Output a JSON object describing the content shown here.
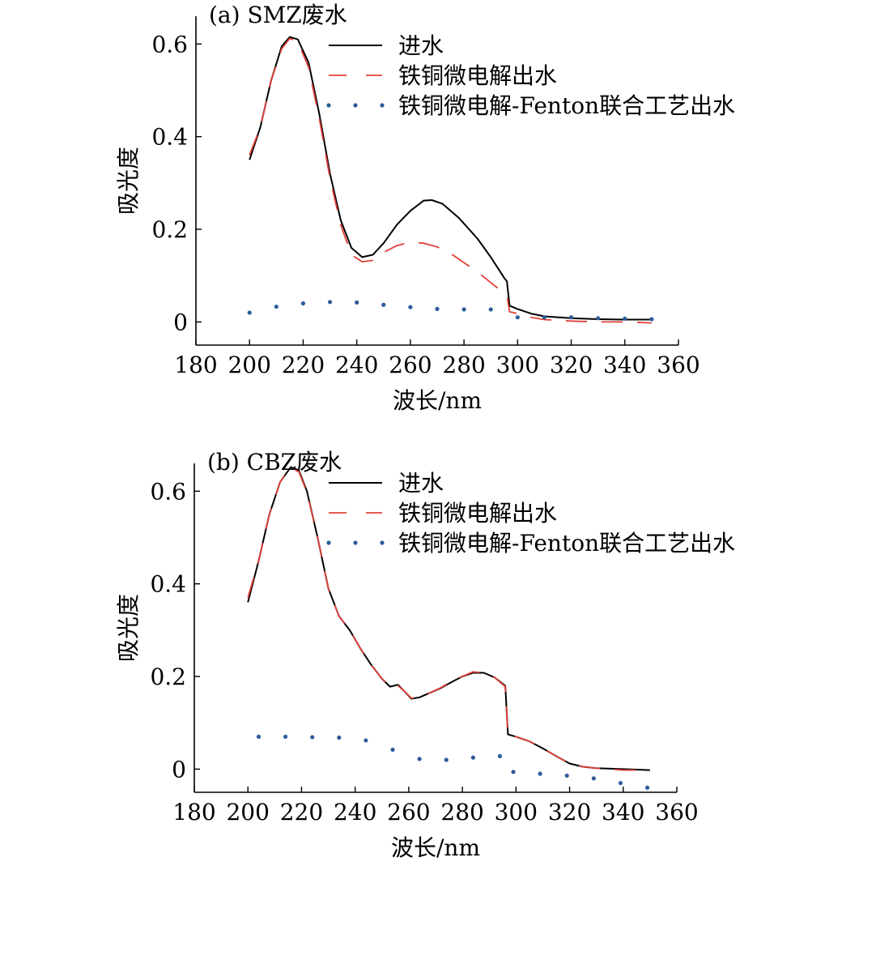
{
  "colors": {
    "inflow": "#000000",
    "micro_electrolysis": "#e2403a",
    "combined_process": "#2e5c9a"
  },
  "chart_data": [
    {
      "type": "line",
      "panel_label": "(a)  SMZ废水",
      "ylabel": "吸光度",
      "xlabel": "波长/nm",
      "xlim": [
        180,
        360
      ],
      "ylim": [
        -0.05,
        0.66
      ],
      "x_ticks": [
        180,
        200,
        220,
        240,
        260,
        280,
        300,
        320,
        340,
        360
      ],
      "y_ticks": [
        0,
        0.2,
        0.4,
        0.6
      ],
      "y_tick_labels": [
        "0",
        "0.2",
        "0.4",
        "0.6"
      ],
      "legend_position": "top-right",
      "series": [
        {
          "name": "进水",
          "style": "solid",
          "color": "#000000",
          "points": [
            [
              200,
              0.35
            ],
            [
              204,
              0.42
            ],
            [
              208,
              0.52
            ],
            [
              212,
              0.595
            ],
            [
              215,
              0.615
            ],
            [
              218,
              0.61
            ],
            [
              222,
              0.56
            ],
            [
              226,
              0.45
            ],
            [
              230,
              0.32
            ],
            [
              234,
              0.22
            ],
            [
              238,
              0.16
            ],
            [
              242,
              0.14
            ],
            [
              246,
              0.145
            ],
            [
              250,
              0.17
            ],
            [
              255,
              0.21
            ],
            [
              260,
              0.24
            ],
            [
              265,
              0.262
            ],
            [
              268,
              0.263
            ],
            [
              272,
              0.255
            ],
            [
              278,
              0.225
            ],
            [
              285,
              0.18
            ],
            [
              290,
              0.14
            ],
            [
              295,
              0.095
            ],
            [
              296,
              0.088
            ],
            [
              297,
              0.035
            ],
            [
              300,
              0.028
            ],
            [
              305,
              0.018
            ],
            [
              310,
              0.012
            ],
            [
              320,
              0.008
            ],
            [
              330,
              0.006
            ],
            [
              340,
              0.005
            ],
            [
              350,
              0.005
            ]
          ]
        },
        {
          "name": "铁铜微电解出水",
          "style": "dashed",
          "color": "#e2403a",
          "points": [
            [
              200,
              0.36
            ],
            [
              204,
              0.42
            ],
            [
              208,
              0.52
            ],
            [
              212,
              0.59
            ],
            [
              215,
              0.612
            ],
            [
              218,
              0.605
            ],
            [
              222,
              0.55
            ],
            [
              226,
              0.44
            ],
            [
              230,
              0.31
            ],
            [
              234,
              0.21
            ],
            [
              238,
              0.145
            ],
            [
              242,
              0.13
            ],
            [
              246,
              0.133
            ],
            [
              250,
              0.15
            ],
            [
              255,
              0.165
            ],
            [
              260,
              0.172
            ],
            [
              265,
              0.17
            ],
            [
              270,
              0.162
            ],
            [
              275,
              0.148
            ],
            [
              280,
              0.128
            ],
            [
              285,
              0.108
            ],
            [
              290,
              0.085
            ],
            [
              295,
              0.062
            ],
            [
              296,
              0.058
            ],
            [
              297,
              0.022
            ],
            [
              300,
              0.018
            ],
            [
              305,
              0.01
            ],
            [
              310,
              0.005
            ],
            [
              320,
              0.002
            ],
            [
              330,
              0
            ],
            [
              340,
              0
            ],
            [
              350,
              -0.002
            ]
          ]
        },
        {
          "name": "铁铜微电解-Fenton联合工艺出水",
          "style": "dotted",
          "color": "#2e5c9a",
          "points": [
            [
              200,
              0.02
            ],
            [
              210,
              0.033
            ],
            [
              220,
              0.04
            ],
            [
              230,
              0.043
            ],
            [
              240,
              0.042
            ],
            [
              250,
              0.037
            ],
            [
              260,
              0.032
            ],
            [
              270,
              0.028
            ],
            [
              280,
              0.027
            ],
            [
              290,
              0.027
            ],
            [
              300,
              0.01
            ],
            [
              310,
              0.01
            ],
            [
              320,
              0.01
            ],
            [
              330,
              0.008
            ],
            [
              340,
              0.007
            ],
            [
              350,
              0.006
            ]
          ]
        }
      ]
    },
    {
      "type": "line",
      "panel_label": "(b)  CBZ废水",
      "ylabel": "吸光度",
      "xlabel": "波长/nm",
      "xlim": [
        180,
        360
      ],
      "ylim": [
        -0.05,
        0.66
      ],
      "x_ticks": [
        180,
        200,
        220,
        240,
        260,
        280,
        300,
        320,
        340,
        360
      ],
      "y_ticks": [
        0,
        0.2,
        0.4,
        0.6
      ],
      "y_tick_labels": [
        "0",
        "0.2",
        "0.4",
        "0.6"
      ],
      "legend_position": "top-right",
      "series": [
        {
          "name": "进水",
          "style": "solid",
          "color": "#000000",
          "points": [
            [
              200,
              0.36
            ],
            [
              204,
              0.45
            ],
            [
              208,
              0.55
            ],
            [
              212,
              0.62
            ],
            [
              216,
              0.652
            ],
            [
              219,
              0.645
            ],
            [
              222,
              0.6
            ],
            [
              226,
              0.5
            ],
            [
              230,
              0.39
            ],
            [
              234,
              0.33
            ],
            [
              238,
              0.3
            ],
            [
              242,
              0.26
            ],
            [
              246,
              0.225
            ],
            [
              250,
              0.195
            ],
            [
              253,
              0.178
            ],
            [
              256,
              0.182
            ],
            [
              258,
              0.17
            ],
            [
              261,
              0.152
            ],
            [
              264,
              0.155
            ],
            [
              268,
              0.165
            ],
            [
              272,
              0.175
            ],
            [
              276,
              0.188
            ],
            [
              280,
              0.2
            ],
            [
              284,
              0.208
            ],
            [
              288,
              0.208
            ],
            [
              292,
              0.198
            ],
            [
              296,
              0.18
            ],
            [
              297,
              0.075
            ],
            [
              300,
              0.07
            ],
            [
              305,
              0.06
            ],
            [
              310,
              0.045
            ],
            [
              315,
              0.028
            ],
            [
              320,
              0.012
            ],
            [
              325,
              0.005
            ],
            [
              330,
              0.002
            ],
            [
              340,
              0
            ],
            [
              350,
              -0.002
            ]
          ]
        },
        {
          "name": "铁铜微电解出水",
          "style": "dashed",
          "color": "#e2403a",
          "points": [
            [
              200,
              0.37
            ],
            [
              204,
              0.45
            ],
            [
              208,
              0.55
            ],
            [
              212,
              0.62
            ],
            [
              216,
              0.65
            ],
            [
              219,
              0.642
            ],
            [
              222,
              0.598
            ],
            [
              226,
              0.5
            ],
            [
              230,
              0.39
            ],
            [
              234,
              0.33
            ],
            [
              238,
              0.3
            ],
            [
              242,
              0.26
            ],
            [
              246,
              0.225
            ],
            [
              250,
              0.195
            ],
            [
              253,
              0.178
            ],
            [
              256,
              0.18
            ],
            [
              258,
              0.17
            ],
            [
              261,
              0.153
            ],
            [
              264,
              0.156
            ],
            [
              268,
              0.165
            ],
            [
              272,
              0.176
            ],
            [
              276,
              0.19
            ],
            [
              280,
              0.2
            ],
            [
              284,
              0.21
            ],
            [
              288,
              0.208
            ],
            [
              292,
              0.198
            ],
            [
              296,
              0.178
            ],
            [
              297,
              0.073
            ],
            [
              300,
              0.07
            ],
            [
              305,
              0.06
            ],
            [
              310,
              0.045
            ],
            [
              315,
              0.028
            ],
            [
              320,
              0.012
            ],
            [
              325,
              0.005
            ],
            [
              330,
              0.002
            ],
            [
              340,
              -0.002
            ],
            [
              350,
              -0.002
            ]
          ]
        },
        {
          "name": "铁铜微电解-Fenton联合工艺出水",
          "style": "dotted",
          "color": "#2e5c9a",
          "points": [
            [
              204,
              0.07
            ],
            [
              214,
              0.07
            ],
            [
              224,
              0.069
            ],
            [
              234,
              0.068
            ],
            [
              244,
              0.062
            ],
            [
              254,
              0.042
            ],
            [
              264,
              0.022
            ],
            [
              274,
              0.02
            ],
            [
              284,
              0.025
            ],
            [
              294,
              0.028
            ],
            [
              299,
              -0.006
            ],
            [
              309,
              -0.01
            ],
            [
              319,
              -0.014
            ],
            [
              329,
              -0.02
            ],
            [
              339,
              -0.03
            ],
            [
              349,
              -0.04
            ]
          ]
        }
      ]
    }
  ]
}
